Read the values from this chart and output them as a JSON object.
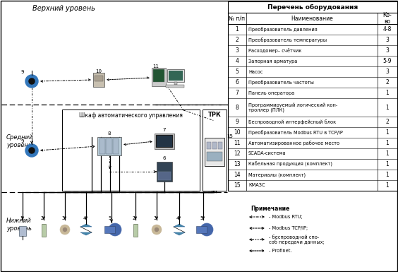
{
  "table_title": "Перечень оборудования",
  "table_headers": [
    "№ п/п",
    "Наименование",
    "Ко-\nво"
  ],
  "table_rows": [
    [
      "1",
      "Преобразователь давления",
      "4-8"
    ],
    [
      "2",
      "Преобразователь температуры",
      "3"
    ],
    [
      "3",
      "Расходомер– счётчик",
      "3"
    ],
    [
      "4",
      "Запорная арматура",
      "5-9"
    ],
    [
      "5",
      "Насос",
      "3"
    ],
    [
      "6",
      "Преобразователь частоты",
      "2"
    ],
    [
      "7",
      "Панель оператора",
      "1"
    ],
    [
      "8",
      "Программируемый логический кон-\nтроллер (ПЛК)",
      "1"
    ],
    [
      "9",
      "Беспроводной интерфейсный блок",
      "2"
    ],
    [
      "10",
      "Преобразователь Modbus RTU в TCP/IP",
      "1"
    ],
    [
      "11",
      "Автоматизированное рабочее место",
      "1"
    ],
    [
      "12",
      "SCADA-система",
      "1"
    ],
    [
      "13",
      "Кабельная продукция (комплект)",
      "1"
    ],
    [
      "14",
      "Материалы (комплект)",
      "1"
    ],
    [
      "15",
      "КМАЗС",
      "1"
    ]
  ],
  "upper_label": "Верхний уровень",
  "middle_label": "Средний\nуровень",
  "lower_label": "Нижний\nуровень",
  "cabinet_label": "Шкаф автоматического управления",
  "trk_label": "ТРК",
  "note_title": "Примечание",
  "note_items": [
    "- Modbus RTU;",
    "- Modbus TCP/IP;",
    "- беспроводной спо-\nсоб передачи данных;",
    "- Profinet."
  ]
}
